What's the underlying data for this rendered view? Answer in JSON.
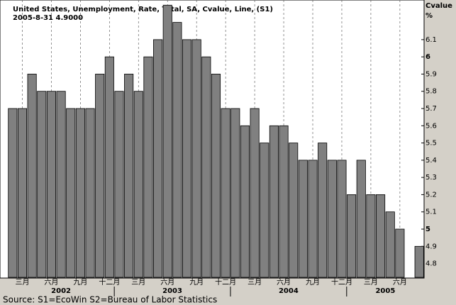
{
  "chart_data": {
    "type": "bar",
    "title": "United States, Unemployment, Rate, Total, SA, Cvalue, Line, (S1)",
    "subtitle": "2005-8-31 4.9000",
    "y_axis_label": "Cvalue",
    "y_axis_unit": "%",
    "source": "Source: S1=EcoWin S2=Bureau of Labor Statistics",
    "categories": [
      null,
      "三月",
      null,
      null,
      "六月",
      null,
      null,
      "九月",
      null,
      null,
      "十二月",
      null,
      null,
      "三月",
      null,
      null,
      "六月",
      null,
      null,
      "九月",
      null,
      null,
      "十二月",
      null,
      null,
      "三月",
      null,
      null,
      "六月",
      null,
      null,
      "九月",
      null,
      null,
      "十二月",
      null,
      null,
      "三月",
      null,
      null,
      "六月",
      null,
      null
    ],
    "year_labels": [
      "2002",
      "2003",
      "2004",
      "2005"
    ],
    "series": [
      {
        "name": "S1",
        "color": "#808080",
        "values": [
          5.7,
          5.7,
          5.9,
          5.8,
          5.8,
          5.8,
          5.7,
          5.7,
          5.7,
          5.9,
          6.0,
          5.8,
          5.9,
          5.8,
          6.0,
          6.1,
          6.3,
          6.2,
          6.1,
          6.1,
          6.0,
          5.9,
          5.7,
          5.7,
          5.6,
          5.7,
          5.5,
          5.6,
          5.6,
          5.5,
          5.4,
          5.4,
          5.5,
          5.4,
          5.4,
          5.2,
          5.4,
          5.2,
          5.2,
          5.1,
          5.0,
          null,
          4.9
        ]
      }
    ],
    "ylim": [
      4.72,
      6.33
    ],
    "yticks": [
      4.8,
      4.9,
      5,
      5.1,
      5.2,
      5.3,
      5.4,
      5.5,
      5.6,
      5.7,
      5.8,
      5.9,
      6,
      6.1
    ],
    "grid": true
  }
}
